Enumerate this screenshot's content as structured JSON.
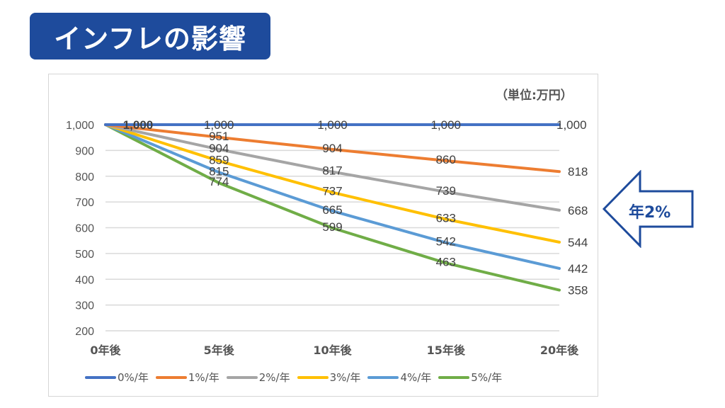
{
  "title": "インフレの影響",
  "unit_label": "（単位:万円）",
  "callout": {
    "label": "年2%",
    "color": "#1e4b9c"
  },
  "chart_data": {
    "type": "line",
    "title": "インフレの影響",
    "xlabel": "",
    "ylabel": "（単位:万円）",
    "categories": [
      "0年後",
      "5年後",
      "10年後",
      "15年後",
      "20年後"
    ],
    "ylim": [
      200,
      1000
    ],
    "yticks": [
      "200",
      "300",
      "400",
      "500",
      "600",
      "700",
      "800",
      "900",
      "1,000"
    ],
    "ytick_values": [
      200,
      300,
      400,
      500,
      600,
      700,
      800,
      900,
      1000
    ],
    "grid": true,
    "legend_position": "bottom",
    "series": [
      {
        "name": "0%/年",
        "color": "#4472c4",
        "values": [
          1000,
          1000,
          1000,
          1000,
          1000
        ],
        "labels": [
          "1,000",
          "1,000",
          "1,000",
          "1,000",
          "1,000"
        ]
      },
      {
        "name": "1%/年",
        "color": "#ed7d31",
        "values": [
          1000,
          951,
          904,
          860,
          818
        ],
        "labels": [
          "1,000",
          "951",
          "904",
          "860",
          "818"
        ]
      },
      {
        "name": "2%/年",
        "color": "#a5a5a5",
        "values": [
          1000,
          904,
          817,
          739,
          668
        ],
        "labels": [
          "1,000",
          "904",
          "817",
          "739",
          "668"
        ]
      },
      {
        "name": "3%/年",
        "color": "#ffc000",
        "values": [
          1000,
          859,
          737,
          633,
          544
        ],
        "labels": [
          "1,000",
          "859",
          "737",
          "633",
          "544"
        ]
      },
      {
        "name": "4%/年",
        "color": "#5b9bd5",
        "values": [
          1000,
          815,
          665,
          542,
          442
        ],
        "labels": [
          "1,000",
          "815",
          "665",
          "542",
          "442"
        ]
      },
      {
        "name": "5%/年",
        "color": "#70ad47",
        "values": [
          1000,
          774,
          599,
          463,
          358
        ],
        "labels": [
          "1,000",
          "774",
          "599",
          "463",
          "358"
        ]
      }
    ]
  }
}
